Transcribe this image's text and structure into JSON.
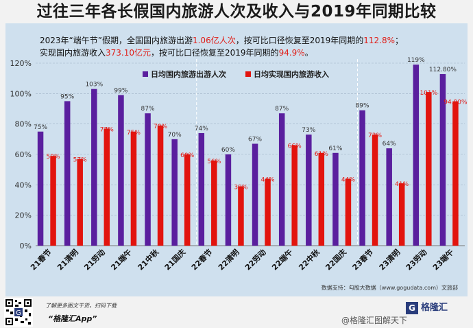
{
  "title": "过往三年各长假国内旅游人次及收入与2019年同期比较",
  "subtitle": {
    "line1": {
      "a": "2023年“端午节”假期，全国国内旅游出游",
      "b": "1.06亿人次",
      "c": "，按可比口径恢复至2019年同期的",
      "d": "112.8%",
      "e": "；"
    },
    "line2": {
      "a": "实现国内旅游收入",
      "b": "373.10亿元",
      "c": "，按可比口径恢复至2019年同期的",
      "d": "94.9%",
      "e": "。"
    }
  },
  "source": "数据支持：勾股大数据（www.gogudata.com）文旅部",
  "footer": {
    "line1": "了解更多图文干货，扫码下载",
    "app": "“格隆汇App”",
    "logo_text": "格隆汇",
    "logo_mark": "G",
    "weibo": "@格隆汇图解天下"
  },
  "colors": {
    "series1": "#5a1f9e",
    "series2": "#e2140e",
    "label2": "#e2140e",
    "panel": "#cfe0ee"
  },
  "chart_data": {
    "type": "bar",
    "categories": [
      "21春节",
      "21清明",
      "21劳动",
      "21端午",
      "21中秋",
      "21国庆",
      "22春节",
      "22清明",
      "22劳动",
      "22端午",
      "22中秋",
      "22国庆",
      "23春节",
      "23清明",
      "23劳动",
      "23端午"
    ],
    "series": [
      {
        "name": "日均国内旅游出游人次",
        "values": [
          75,
          95,
          103,
          99,
          87,
          70,
          74,
          60,
          67,
          87,
          73,
          61,
          89,
          64,
          119,
          112.8
        ]
      },
      {
        "name": "日均实现国内旅游收入",
        "values": [
          59,
          57,
          77,
          75,
          79,
          60,
          56,
          39,
          44,
          66,
          61,
          44,
          73,
          41,
          101,
          94.9
        ]
      }
    ],
    "labels1": [
      "75%",
      "95%",
      "103%",
      "99%",
      "87%",
      "70%",
      "74%",
      "60%",
      "67%",
      "87%",
      "73%",
      "61%",
      "89%",
      "64%",
      "119%",
      "112.80%"
    ],
    "labels2": [
      "59%",
      "57%",
      "77%",
      "75%",
      "79%",
      "60%",
      "56%",
      "39%",
      "44%",
      "66%",
      "61%",
      "44%",
      "73%",
      "41%",
      "101%",
      "94.90%"
    ],
    "yticks": [
      "0%",
      "20%",
      "40%",
      "60%",
      "80%",
      "100%",
      "120%"
    ],
    "ylim": [
      0,
      120
    ],
    "grid": true,
    "legend": "top-center"
  }
}
